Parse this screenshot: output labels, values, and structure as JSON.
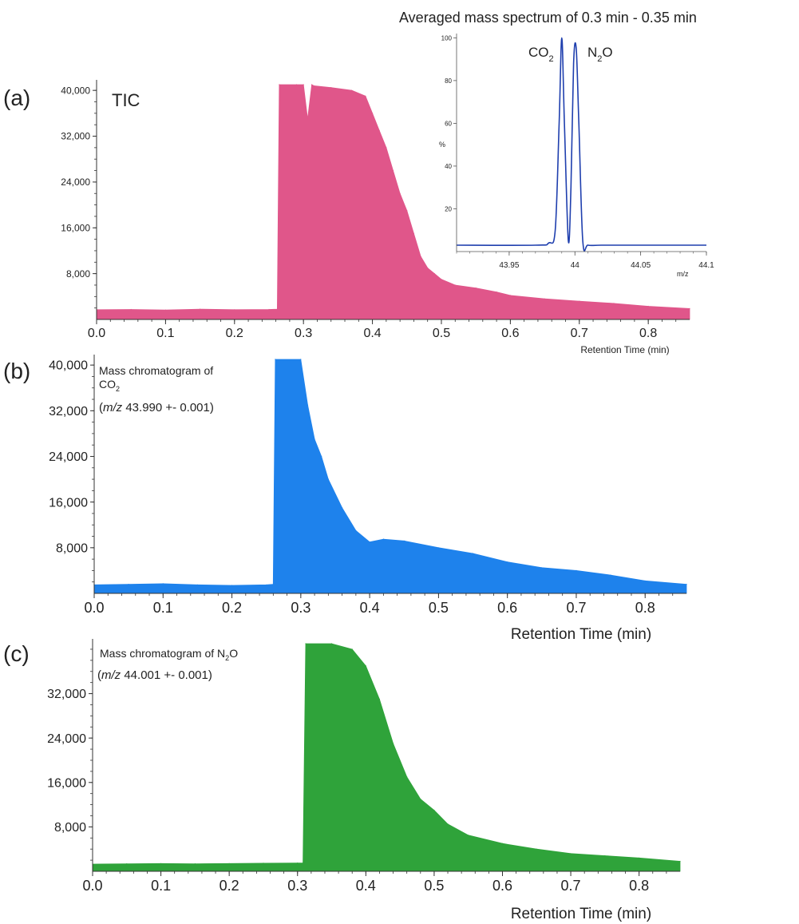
{
  "panels": {
    "a": {
      "letter": "(a)",
      "label": "TIC",
      "xlabel": "Retention Time (min)",
      "x_ticks": [
        "0.0",
        "0.1",
        "0.2",
        "0.3",
        "0.4",
        "0.5",
        "0.6",
        "0.7",
        "0.8"
      ],
      "y_ticks": [
        "8,000",
        "16,000",
        "24,000",
        "32,000",
        "40,000"
      ]
    },
    "b": {
      "letter": "(b)",
      "label_line1": "Mass chromatogram of",
      "label_line2_base": "CO",
      "label_line2_sub": "2",
      "label_line3_italic": "m/z",
      "label_line3_rest": "43.990 +- 0.001)",
      "label_paren": "(",
      "xlabel": "Retention Time (min)",
      "x_ticks": [
        "0.0",
        "0.1",
        "0.2",
        "0.3",
        "0.4",
        "0.5",
        "0.6",
        "0.7",
        "0.8"
      ],
      "y_ticks": [
        "8,000",
        "16,000",
        "24,000",
        "32,000",
        "40,000"
      ]
    },
    "c": {
      "letter": "(c)",
      "label_line1_a": "Mass chromatogram of N",
      "label_line1_sub": "2",
      "label_line1_b": "O",
      "label_line2_italic": "m/z",
      "label_line2_rest": "44.001 +- 0.001)",
      "label_paren": "(",
      "xlabel": "Retention Time (min)",
      "x_ticks": [
        "0.0",
        "0.1",
        "0.2",
        "0.3",
        "0.4",
        "0.5",
        "0.6",
        "0.7",
        "0.8"
      ],
      "y_ticks": [
        "8,000",
        "16,000",
        "24,000",
        "32,000"
      ]
    },
    "inset": {
      "title": "Averaged mass spectrum of 0.3 min - 0.35 min",
      "ylabel": "%",
      "xlabel": "m/z",
      "peak1_base": "CO",
      "peak1_sub": "2",
      "peak2_a": "N",
      "peak2_sub": "2",
      "peak2_b": "O",
      "x_ticks": [
        "43.95",
        "44",
        "44.05",
        "44.1"
      ],
      "y_ticks": [
        "20",
        "40",
        "60",
        "80",
        "100"
      ]
    }
  },
  "chart_data": [
    {
      "id": "a",
      "type": "area",
      "color": "#e0568a",
      "xlim": [
        0.0,
        0.86
      ],
      "ylim": [
        0,
        41000
      ],
      "x": [
        0.0,
        0.05,
        0.1,
        0.15,
        0.2,
        0.25,
        0.262,
        0.265,
        0.29,
        0.3,
        0.306,
        0.312,
        0.315,
        0.34,
        0.37,
        0.39,
        0.4,
        0.41,
        0.42,
        0.43,
        0.44,
        0.45,
        0.46,
        0.47,
        0.48,
        0.49,
        0.5,
        0.52,
        0.55,
        0.58,
        0.6,
        0.65,
        0.7,
        0.75,
        0.8,
        0.86
      ],
      "values": [
        1700,
        1750,
        1650,
        1800,
        1700,
        1750,
        1800,
        41000,
        41000,
        41000,
        35000,
        41000,
        40800,
        40500,
        40000,
        39000,
        36000,
        33000,
        30000,
        26000,
        22000,
        19000,
        15000,
        11000,
        9000,
        8000,
        7000,
        6000,
        5500,
        4800,
        4200,
        3600,
        3200,
        2800,
        2300,
        1900
      ]
    },
    {
      "id": "b",
      "type": "area",
      "color": "#1e82ec",
      "xlim": [
        0.0,
        0.86
      ],
      "ylim": [
        0,
        41000
      ],
      "x": [
        0.0,
        0.05,
        0.1,
        0.15,
        0.2,
        0.25,
        0.26,
        0.263,
        0.3,
        0.31,
        0.32,
        0.33,
        0.34,
        0.36,
        0.38,
        0.4,
        0.42,
        0.45,
        0.5,
        0.55,
        0.6,
        0.65,
        0.7,
        0.75,
        0.8,
        0.86
      ],
      "values": [
        1500,
        1600,
        1700,
        1500,
        1400,
        1500,
        1600,
        41000,
        41000,
        33000,
        27000,
        24000,
        20000,
        15000,
        11000,
        9000,
        9500,
        9200,
        8000,
        7000,
        5500,
        4500,
        4000,
        3200,
        2200,
        1600
      ]
    },
    {
      "id": "c",
      "type": "area",
      "color": "#2fa33a",
      "xlim": [
        0.0,
        0.86
      ],
      "ylim": [
        0,
        41000
      ],
      "x": [
        0.0,
        0.05,
        0.1,
        0.15,
        0.2,
        0.25,
        0.3,
        0.308,
        0.312,
        0.35,
        0.38,
        0.4,
        0.42,
        0.44,
        0.46,
        0.48,
        0.5,
        0.52,
        0.55,
        0.6,
        0.65,
        0.7,
        0.75,
        0.8,
        0.86
      ],
      "values": [
        1300,
        1350,
        1400,
        1350,
        1400,
        1450,
        1500,
        1500,
        41000,
        41000,
        40000,
        37000,
        31000,
        23000,
        17000,
        13000,
        11000,
        8500,
        6500,
        5000,
        4000,
        3200,
        2800,
        2400,
        1800
      ]
    },
    {
      "id": "inset",
      "type": "line",
      "color": "#1f3fae",
      "xlim": [
        43.91,
        44.1
      ],
      "ylim": [
        0,
        102
      ],
      "x": [
        43.91,
        43.97,
        43.98,
        43.985,
        43.988,
        43.99,
        43.992,
        43.995,
        43.997,
        43.999,
        44.001,
        44.003,
        44.006,
        44.01,
        44.02,
        44.05,
        44.1
      ],
      "values": [
        3,
        3,
        4,
        10,
        60,
        100,
        60,
        5,
        30,
        88,
        95,
        60,
        5,
        3,
        3,
        3,
        3
      ]
    }
  ]
}
